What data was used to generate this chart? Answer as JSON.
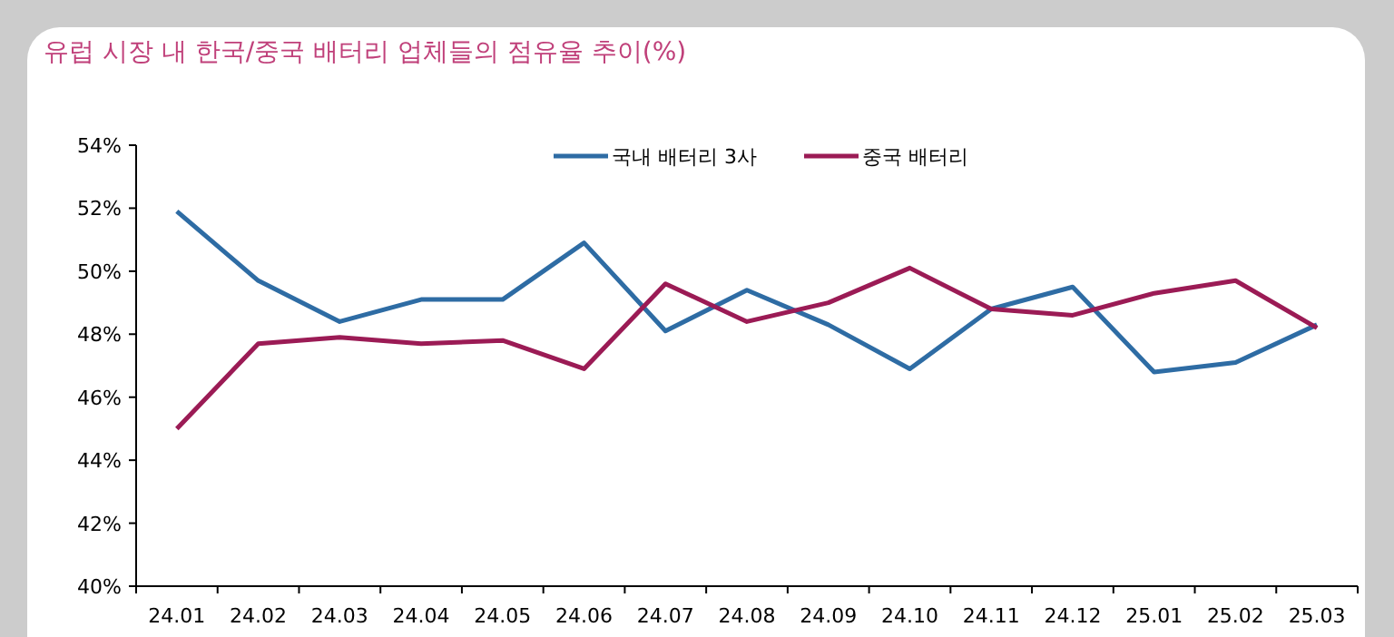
{
  "chart_data": {
    "type": "line",
    "title": "유럽 시장 내 한국/중국 배터리 업체들의 점유율 추이(%)",
    "categories": [
      "24.01",
      "24.02",
      "24.03",
      "24.04",
      "24.05",
      "24.06",
      "24.07",
      "24.08",
      "24.09",
      "24.10",
      "24.11",
      "24.12",
      "25.01",
      "25.02",
      "25.03"
    ],
    "series": [
      {
        "name": "국내 배터리 3사",
        "color": "#2e6ca4",
        "values": [
          51.9,
          49.7,
          48.4,
          49.1,
          49.1,
          50.9,
          48.1,
          49.4,
          48.3,
          46.9,
          48.8,
          49.5,
          46.8,
          47.1,
          48.3
        ]
      },
      {
        "name": "중국 배터리",
        "color": "#9b1b55",
        "values": [
          45.0,
          47.7,
          47.9,
          47.7,
          47.8,
          46.9,
          49.6,
          48.4,
          49.0,
          50.1,
          48.8,
          48.6,
          49.3,
          49.7,
          48.2
        ]
      }
    ],
    "ylim": [
      40,
      54
    ],
    "yticks": [
      {
        "value": 40,
        "label": "40%"
      },
      {
        "value": 42,
        "label": "42%"
      },
      {
        "value": 44,
        "label": "44%"
      },
      {
        "value": 46,
        "label": "46%"
      },
      {
        "value": 48,
        "label": "48%"
      },
      {
        "value": 50,
        "label": "50%"
      },
      {
        "value": 52,
        "label": "52%"
      },
      {
        "value": 54,
        "label": "54%"
      }
    ],
    "legend": "top",
    "grid": false,
    "marker": "none",
    "line_style": "solid"
  }
}
